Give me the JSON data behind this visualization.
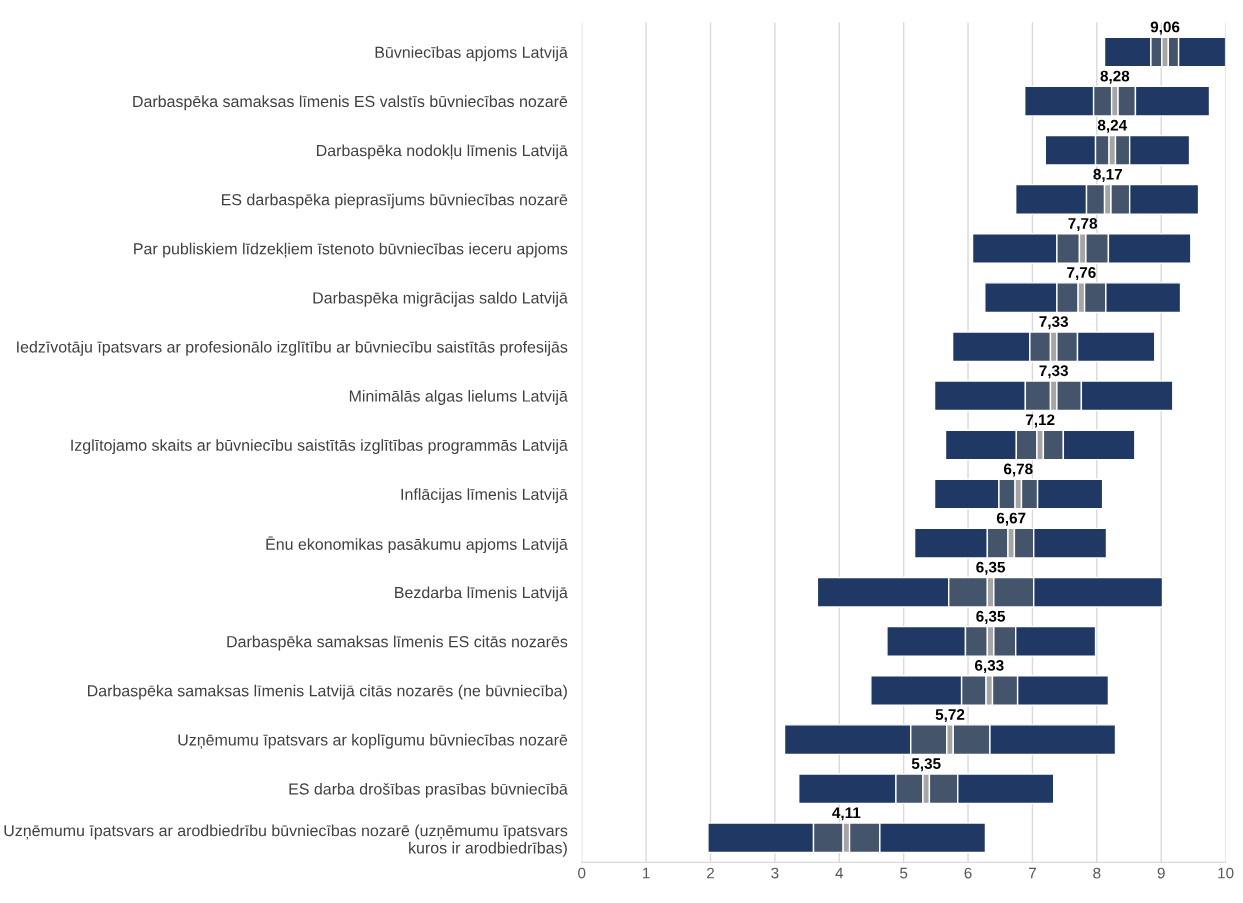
{
  "chart_data": {
    "type": "bar",
    "orientation": "horizontal",
    "categories": [
      "Būvniecības apjoms Latvijā",
      "Darbaspēka samaksas līmenis ES valstīs būvniecības nozarē",
      "Darbaspēka nodokļu līmenis Latvijā",
      "ES darbaspēka pieprasījums būvniecības nozarē",
      "Par publiskiem līdzekļiem īstenoto būvniecības ieceru apjoms",
      "Darbaspēka migrācijas saldo Latvijā",
      "Iedzīvotāju īpatsvars ar profesionālo izglītību ar būvniecību saistītās profesijās",
      "Minimālās algas lielums Latvijā",
      "Izglītojamo skaits ar būvniecību saistītās izglītības programmās Latvijā",
      "Inflācijas līmenis Latvijā",
      "Ēnu ekonomikas pasākumu apjoms Latvijā",
      "Bezdarba līmenis Latvijā",
      "Darbaspēka samaksas līmenis ES citās nozarēs",
      "Darbaspēka samaksas līmenis Latvijā citās nozarēs (ne būvniecība)",
      "Uzņēmumu īpatsvars ar koplīgumu būvniecības nozarē",
      "ES darba drošības prasības būvniecībā",
      "Uzņēmumu īpatsvars ar arodbiedrību būvniecības nozarē (uzņēmumu īpatsvars kuros ir arodbiedrības)"
    ],
    "series": [
      {
        "color": "#203864",
        "base": [
          8.12,
          6.88,
          7.2,
          6.74,
          6.07,
          6.26,
          5.76,
          5.48,
          5.65,
          5.48,
          5.17,
          3.66,
          4.74,
          4.49,
          3.15,
          3.37,
          1.96
        ],
        "values": [
          0.72,
          1.07,
          0.78,
          1.1,
          1.31,
          1.12,
          1.2,
          1.41,
          1.1,
          1.0,
          1.13,
          2.04,
          1.22,
          1.41,
          1.96,
          1.51,
          1.64
        ]
      },
      {
        "color": "#44546a",
        "base": [
          8.84,
          7.95,
          7.98,
          7.84,
          7.38,
          7.38,
          6.96,
          6.89,
          6.75,
          6.48,
          6.3,
          5.7,
          5.96,
          5.9,
          5.11,
          4.88,
          3.6
        ],
        "values": [
          0.17,
          0.28,
          0.21,
          0.28,
          0.35,
          0.33,
          0.32,
          0.39,
          0.32,
          0.25,
          0.32,
          0.6,
          0.34,
          0.38,
          0.56,
          0.42,
          0.46
        ]
      },
      {
        "color": "#a5a5a5",
        "base": [
          9.01,
          8.23,
          8.19,
          8.12,
          7.73,
          7.71,
          7.28,
          7.28,
          7.07,
          6.73,
          6.62,
          6.3,
          6.3,
          6.28,
          5.67,
          5.3,
          4.06
        ],
        "values": [
          0.1,
          0.1,
          0.1,
          0.1,
          0.1,
          0.1,
          0.1,
          0.1,
          0.1,
          0.1,
          0.1,
          0.1,
          0.1,
          0.1,
          0.1,
          0.1,
          0.1
        ]
      },
      {
        "color": "#44546a",
        "base": [
          9.11,
          8.33,
          8.29,
          8.22,
          7.83,
          7.81,
          7.38,
          7.38,
          7.17,
          6.83,
          6.72,
          6.4,
          6.4,
          6.38,
          5.77,
          5.4,
          4.16
        ],
        "values": [
          0.16,
          0.27,
          0.22,
          0.29,
          0.35,
          0.33,
          0.32,
          0.38,
          0.31,
          0.25,
          0.3,
          0.62,
          0.34,
          0.39,
          0.57,
          0.44,
          0.47
        ]
      },
      {
        "color": "#203864",
        "base": [
          9.27,
          8.6,
          8.51,
          8.51,
          8.18,
          8.14,
          7.7,
          7.76,
          7.48,
          7.08,
          7.02,
          7.02,
          6.74,
          6.77,
          6.34,
          5.84,
          4.63
        ],
        "values": [
          0.73,
          1.15,
          0.93,
          1.07,
          1.28,
          1.16,
          1.2,
          1.42,
          1.11,
          1.01,
          1.13,
          2.0,
          1.24,
          1.41,
          1.95,
          1.49,
          1.64
        ]
      }
    ],
    "annotations": [
      "9,06",
      "8,28",
      "8,24",
      "8,17",
      "7,78",
      "7,76",
      "7,33",
      "7,33",
      "7,12",
      "6,78",
      "6,67",
      "6,35",
      "6,35",
      "6,33",
      "5,72",
      "5,35",
      "4,11"
    ],
    "xlim": [
      0,
      10
    ],
    "xticks": [
      0,
      1,
      2,
      3,
      4,
      5,
      6,
      7,
      8,
      9,
      10
    ],
    "grid": "x"
  }
}
